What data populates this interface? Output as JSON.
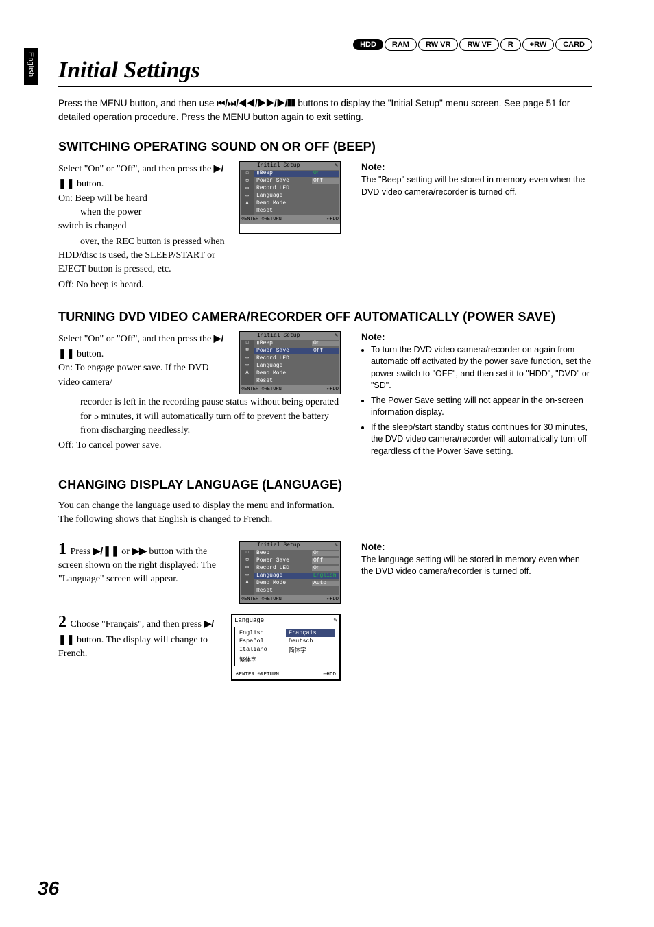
{
  "lang_tab": "English",
  "badges": [
    "HDD",
    "RAM",
    "RW VR",
    "RW VF",
    "R",
    "+RW",
    "CARD"
  ],
  "badge_styles": [
    "b-solid",
    "b-outline",
    "b-outline",
    "b-outline",
    "b-outline",
    "b-outline",
    "b-outline"
  ],
  "page_title": "Initial Settings",
  "intro_pre": "Press the MENU button, and then use ",
  "intro_btns": "⏮/⏭/◀◀/▶▶/▶/❚❚",
  "intro_post": " buttons to display the \"Initial Setup\" menu screen. See page 51 for detailed operation procedure. Press the MENU button again to exit setting.",
  "sec1_h": "SWITCHING OPERATING SOUND ON OR OFF (BEEP)",
  "sec1_p1a": "Select \"On\" or \"Off\", and then press the ",
  "sec1_p1b": " button.",
  "play_pause": "▶/❚❚",
  "sec1_on": "On: Beep will be heard when the power switch is changed over, the REC button is pressed when HDD/disc is used, the SLEEP/START or EJECT button is pressed, etc.",
  "sec1_off": "Off: No beep is heard.",
  "sec1_note_h": "Note:",
  "sec1_note": "The \"Beep\" setting will be stored in memory even when the DVD video camera/recorder is turned off.",
  "menu1": {
    "title": "Initial Setup",
    "rows": [
      {
        "ico": "☐",
        "lbl": "Beep",
        "val": "On",
        "hl": true,
        "on": true,
        "pre": "▮"
      },
      {
        "ico": "⊞",
        "lbl": "Power Save",
        "val": "Off",
        "hl": false
      },
      {
        "ico": "▭",
        "lbl": "Record LED",
        "val": "",
        "hl": false
      },
      {
        "ico": "▭",
        "lbl": "Language",
        "val": "",
        "hl": false
      },
      {
        "ico": "A",
        "lbl": "Demo Mode",
        "val": "",
        "hl": false
      },
      {
        "ico": "",
        "lbl": "Reset",
        "val": "",
        "hl": false
      }
    ],
    "foot_l": "⊙ENTER ⊙RETURN",
    "foot_r": "⟵HDD"
  },
  "sec2_h": "TURNING DVD VIDEO CAMERA/RECORDER OFF AUTOMATICALLY (POWER SAVE)",
  "sec2_p1a": "Select \"On\" or \"Off\", and then press the ",
  "sec2_p1b": " button.",
  "sec2_on": "On: To engage power save. If the DVD video camera/recorder is left in the recording pause status without being operated for 5 minutes, it will automatically turn off to prevent the battery from discharging needlessly.",
  "sec2_on_short": "On: To engage power save. If the DVD video camera/",
  "sec2_on_rest": "recorder is left in the recording pause status without being operated for 5 minutes, it will automatically turn off to prevent the battery from discharging needlessly.",
  "sec2_off": "Off: To cancel power save.",
  "sec2_note_h": "Note:",
  "sec2_notes": [
    "To turn the DVD video camera/recorder on again from automatic off activated by the power save function, set the power switch to \"OFF\", and then set it to \"HDD\", \"DVD\" or \"SD\".",
    "The Power Save setting will not appear in the on-screen information display.",
    "If the sleep/start standby status continues for 30 minutes, the DVD video camera/recorder will automatically turn off regardless of the Power Save setting."
  ],
  "menu2": {
    "title": "Initial Setup",
    "rows": [
      {
        "ico": "☐",
        "lbl": "Beep",
        "val": "On",
        "hl": false,
        "pre": "▮"
      },
      {
        "ico": "⊞",
        "lbl": "Power Save",
        "val": "Off",
        "hl": true,
        "on": false
      },
      {
        "ico": "▭",
        "lbl": "Record LED",
        "val": "",
        "hl": false
      },
      {
        "ico": "▭",
        "lbl": "Language",
        "val": "",
        "hl": false
      },
      {
        "ico": "A",
        "lbl": "Demo Mode",
        "val": "",
        "hl": false
      },
      {
        "ico": "",
        "lbl": "Reset",
        "val": "",
        "hl": false
      }
    ],
    "foot_l": "⊙ENTER ⊙RETURN",
    "foot_r": "⟵HDD"
  },
  "sec3_h": "CHANGING DISPLAY LANGUAGE (LANGUAGE)",
  "sec3_intro": "You can change the language used to display the menu and information.\nThe following shows that English is changed to French.",
  "fast_fwd": "▶▶",
  "step1_pre": "Press ",
  "step1_mid": " or ",
  "step1_post": " button with the screen shown on the right displayed: The \"Language\" screen will appear.",
  "step2_pre": "Choose \"Français\", and then press ",
  "step2_post": " button. The display will change to French.",
  "sec3_note_h": "Note:",
  "sec3_note": "The language setting will be stored in memory even when the DVD video camera/recorder is turned off.",
  "menu3": {
    "title": "Initial Setup",
    "rows": [
      {
        "ico": "☐",
        "lbl": "Beep",
        "val": "On"
      },
      {
        "ico": "⊞",
        "lbl": "Power Save",
        "val": "Off"
      },
      {
        "ico": "▭",
        "lbl": "Record LED",
        "val": "On"
      },
      {
        "ico": "▭",
        "lbl": "Language",
        "val": "English",
        "hl": true,
        "on": true
      },
      {
        "ico": "A",
        "lbl": "Demo Mode",
        "val": "Auto"
      },
      {
        "ico": "",
        "lbl": "Reset",
        "val": ""
      }
    ],
    "foot_l": "⊙ENTER ⊙RETURN",
    "foot_r": "⟵HDD"
  },
  "langbox": {
    "title": "Language",
    "cells": [
      {
        "t": "English",
        "sel": false
      },
      {
        "t": "Français",
        "sel": true
      },
      {
        "t": "Español",
        "sel": false
      },
      {
        "t": "Deutsch",
        "sel": false
      },
      {
        "t": "Italiano",
        "sel": false
      },
      {
        "t": "简体字",
        "sel": false
      },
      {
        "t": "繁体字",
        "sel": false
      },
      {
        "t": "",
        "sel": false
      }
    ],
    "foot_l": "⊙ENTER ⊙RETURN",
    "foot_r": "⟵HDD"
  },
  "page_num": "36"
}
